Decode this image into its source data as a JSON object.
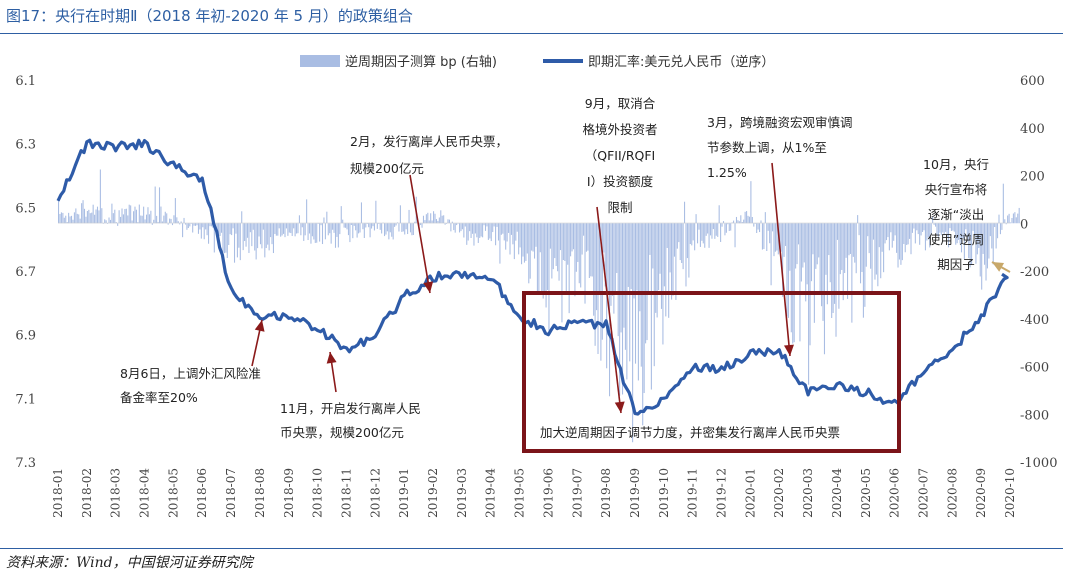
{
  "page": {
    "title": "图17：央行在时期Ⅱ（2018 年初-2020 年 5 月）的政策组合",
    "source": "资料来源：Wind，中国银河证券研究院"
  },
  "chart_data": {
    "type": "line",
    "legend": {
      "bars": "逆周期因子测算 bp (右轴)",
      "line": "即期汇率:美元兑人民币（逆序）",
      "placement": "top"
    },
    "colors": {
      "line": "#2e5ba8",
      "bars": "#a9bde3",
      "box": "#7b1419",
      "arrow": "#8b1a1a",
      "arrow_last": "#c8a86a"
    },
    "left_axis": {
      "ticks": [
        "6.1",
        "6.3",
        "6.5",
        "6.7",
        "6.9",
        "7.1",
        "7.3"
      ],
      "range": [
        6.1,
        7.3
      ],
      "reversed": true
    },
    "right_axis": {
      "ticks": [
        "600",
        "400",
        "200",
        "0",
        "-200",
        "-400",
        "-600",
        "-800",
        "-1000"
      ],
      "range": [
        -1000,
        600
      ]
    },
    "x_labels": [
      "2018-01",
      "2018-02",
      "2018-03",
      "2018-04",
      "2018-05",
      "2018-06",
      "2018-07",
      "2018-08",
      "2018-09",
      "2018-10",
      "2018-11",
      "2018-12",
      "2019-01",
      "2019-02",
      "2019-03",
      "2019-04",
      "2019-05",
      "2019-06",
      "2019-07",
      "2019-08",
      "2019-09",
      "2019-10",
      "2019-11",
      "2019-12",
      "2020-01",
      "2020-02",
      "2020-03",
      "2020-04",
      "2020-05",
      "2020-06",
      "2020-07",
      "2020-08",
      "2020-09",
      "2020-10"
    ],
    "spot_rate_monthly": [
      6.47,
      6.3,
      6.31,
      6.3,
      6.37,
      6.41,
      6.76,
      6.84,
      6.84,
      6.88,
      6.95,
      6.9,
      6.78,
      6.72,
      6.71,
      6.72,
      6.84,
      6.89,
      6.86,
      6.87,
      7.15,
      7.1,
      7.0,
      7.01,
      6.96,
      6.95,
      7.08,
      7.06,
      7.08,
      7.12,
      7.02,
      6.95,
      6.84,
      6.71
    ],
    "ccf_bp_monthly": [
      40,
      60,
      45,
      50,
      20,
      -30,
      -120,
      -90,
      -40,
      -70,
      -50,
      -40,
      -50,
      40,
      -40,
      -60,
      -100,
      -350,
      -200,
      -450,
      -700,
      -300,
      -100,
      -40,
      40,
      -300,
      -450,
      -300,
      -250,
      -150,
      -60,
      -30,
      -200,
      50
    ],
    "annotations": [
      {
        "lines": [
          "8月6日，上调外汇风险准",
          "备金率至20%"
        ]
      },
      {
        "lines": [
          "11月，开启发行离岸人民",
          "币央票，规模200亿元"
        ]
      },
      {
        "lines": [
          "2月，发行离岸人民币央票，",
          "规模200亿元"
        ]
      },
      {
        "lines": [
          "9月，取消合",
          "格境外投资者",
          "（QFII/RQFI",
          "I）投资额度",
          "限制"
        ]
      },
      {
        "lines": [
          "3月，跨境融资宏观审慎调",
          "节参数上调，从1%至",
          "1.25%"
        ]
      },
      {
        "lines": [
          "10月，央行",
          "央行宣布将",
          "逐渐“淡出",
          "使用”逆周",
          "期因子"
        ]
      },
      {
        "lines": [
          "加大逆周期因子调节力度，并密集发行离岸人民币央票"
        ]
      }
    ]
  }
}
